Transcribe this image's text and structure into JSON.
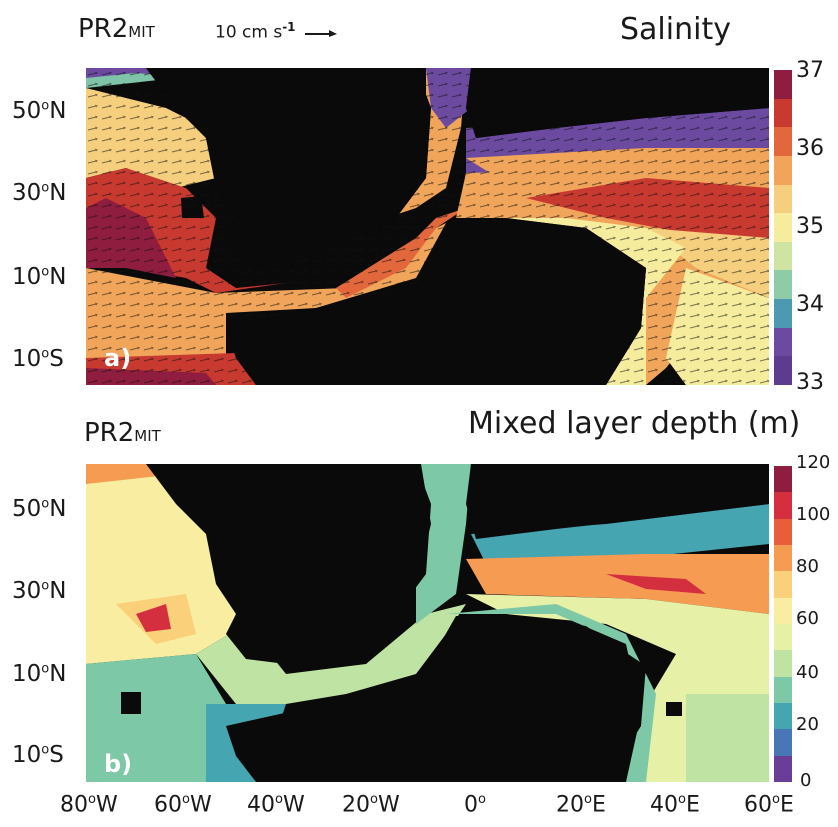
{
  "panels": [
    {
      "id": "a",
      "model": "PR2",
      "model_subscript": "MIT",
      "reference_vector_label": "10 cm s",
      "reference_vector_exponent": "-1",
      "title": "Salinity",
      "panel_label": "a)",
      "colorbar": {
        "ticks": [
          "37",
          "36",
          "35",
          "34",
          "33"
        ],
        "colors": [
          "#8e1d3f",
          "#c8392f",
          "#e2673c",
          "#f0a55a",
          "#f5cf7e",
          "#f6ec9d",
          "#cfe3a3",
          "#8fcba7",
          "#4b9ab2",
          "#6b4aa0",
          "#5d3b8f"
        ]
      }
    },
    {
      "id": "b",
      "model": "PR2",
      "model_subscript": "MIT",
      "title": "Mixed layer depth (m)",
      "panel_label": "b)",
      "colorbar": {
        "ticks": [
          "120",
          "100",
          "80",
          "60",
          "40",
          "20",
          "0"
        ],
        "colors": [
          "#8e1d3f",
          "#d32f3f",
          "#e85e3b",
          "#f59b52",
          "#fbd07a",
          "#f8eda0",
          "#e6f0a6",
          "#bfe3a2",
          "#7cc8a7",
          "#45a5b0",
          "#4876b6",
          "#6a3e96"
        ]
      }
    }
  ],
  "lat_labels": [
    {
      "deg": "50",
      "hemi": "N"
    },
    {
      "deg": "30",
      "hemi": "N"
    },
    {
      "deg": "10",
      "hemi": "N"
    },
    {
      "deg": "10",
      "hemi": "S"
    }
  ],
  "lon_labels": [
    {
      "deg": "80",
      "hemi": "W"
    },
    {
      "deg": "60",
      "hemi": "W"
    },
    {
      "deg": "40",
      "hemi": "W"
    },
    {
      "deg": "20",
      "hemi": "W"
    },
    {
      "deg": "0",
      "hemi": ""
    },
    {
      "deg": "20",
      "hemi": "E"
    },
    {
      "deg": "40",
      "hemi": "E"
    },
    {
      "deg": "60",
      "hemi": "E"
    }
  ],
  "degree_symbol": "o"
}
